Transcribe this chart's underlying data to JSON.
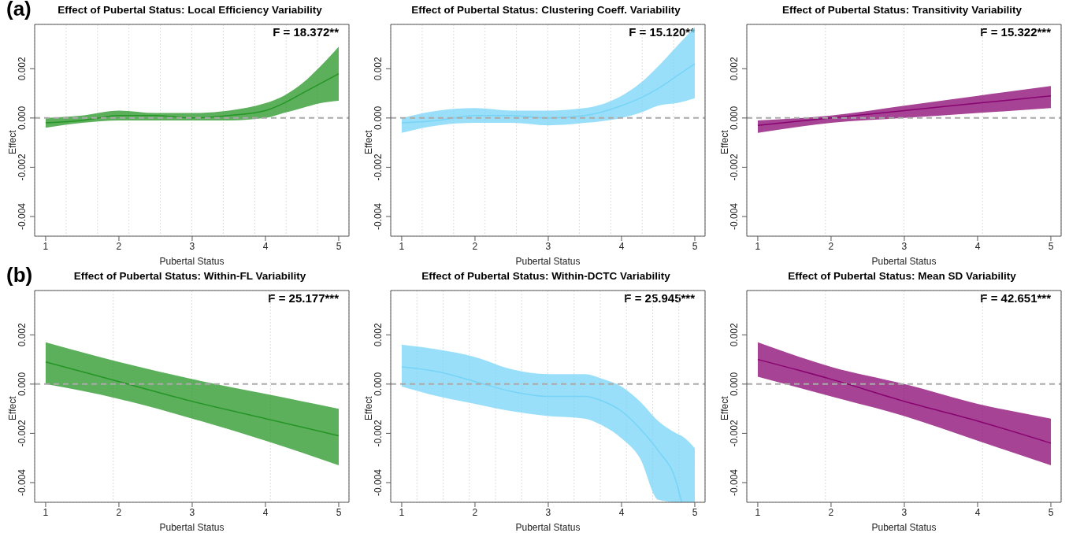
{
  "chart_data": [
    {
      "type": "line",
      "title": "Effect of Pubertal Status: Local Efficiency Variability",
      "xlabel": "Pubertal Status",
      "ylabel": "Effect",
      "annotations": [
        "(a)",
        "F = 18.372**"
      ],
      "x": [
        1,
        1.5,
        2,
        2.5,
        3,
        3.5,
        4,
        4.25,
        4.5,
        4.75,
        5
      ],
      "series": [
        {
          "color": "#259525",
          "values": [
            -0.0002,
            -0.0001,
            0.0001,
            0.0001,
            0,
            0.0001,
            0.0003,
            0.0006,
            0.001,
            0.0014,
            0.0018
          ],
          "lower": [
            -0.0004,
            -0.0002,
            -0.0001,
            -0.0001,
            -0.0001,
            -0.0001,
            0,
            0.0002,
            0.0004,
            0.0006,
            0.0007
          ],
          "upper": [
            0,
            0.0001,
            0.0003,
            0.0002,
            0.0002,
            0.0003,
            0.0006,
            0.0009,
            0.0014,
            0.0021,
            0.0029
          ]
        }
      ],
      "xlim": [
        0.85,
        5.14
      ],
      "ylim": [
        -0.0048,
        0.0038
      ],
      "xticks": [
        1,
        2,
        3,
        4,
        5
      ],
      "yticks": [
        {
          "value": -0.004,
          "label": "-0.004"
        },
        {
          "value": -0.002,
          "label": "-0.002"
        },
        {
          "value": 0,
          "label": "0.000"
        },
        {
          "value": 0.002,
          "label": "0.002"
        }
      ],
      "grid": true,
      "ref_lines": [
        {
          "axis": "y",
          "value": 0,
          "color": "#aaaaaa",
          "line_style": "dashed"
        }
      ]
    },
    {
      "type": "line",
      "title": "Effect of Pubertal Status: Clustering Coeff. Variability",
      "xlabel": "Pubertal Status",
      "ylabel": "Effect",
      "annotations": [
        "F = 15.120**"
      ],
      "x": [
        1,
        1.5,
        2,
        2.5,
        3,
        3.5,
        4,
        4.25,
        4.5,
        4.75,
        5
      ],
      "series": [
        {
          "color": "#77d4f7",
          "values": [
            -0.0002,
            -0.0001,
            0.0001,
            0.0001,
            0,
            0.0001,
            0.0005,
            0.0008,
            0.0012,
            0.0017,
            0.0022
          ],
          "lower": [
            -0.0006,
            -0.0003,
            -0.0002,
            -0.0002,
            -0.0003,
            -0.0002,
            0,
            0.0002,
            0.0005,
            0.0006,
            0.0008
          ],
          "upper": [
            0,
            0.0003,
            0.0004,
            0.0003,
            0.0003,
            0.0004,
            0.0009,
            0.0014,
            0.0021,
            0.0029,
            0.0037
          ]
        }
      ],
      "xlim": [
        0.85,
        5.14
      ],
      "ylim": [
        -0.0048,
        0.0038
      ],
      "xticks": [
        1,
        2,
        3,
        4,
        5
      ],
      "yticks": [
        {
          "value": -0.004,
          "label": "-0.004"
        },
        {
          "value": -0.002,
          "label": "-0.002"
        },
        {
          "value": 0,
          "label": "0.000"
        },
        {
          "value": 0.002,
          "label": "0.002"
        }
      ],
      "grid": true,
      "ref_lines": [
        {
          "axis": "y",
          "value": 0,
          "color": "#aaaaaa",
          "line_style": "dashed"
        }
      ]
    },
    {
      "type": "line",
      "title": "Effect of Pubertal Status: Transitivity Variability",
      "xlabel": "Pubertal Status",
      "ylabel": "Effect",
      "annotations": [
        "F = 15.322***"
      ],
      "x": [
        1,
        2,
        3,
        4,
        5
      ],
      "series": [
        {
          "color": "#880470",
          "values": [
            -0.0003,
            0,
            0.0003,
            0.0006,
            0.0009
          ],
          "lower": [
            -0.0006,
            -0.0002,
            0,
            0.0002,
            0.0004
          ],
          "upper": [
            -0.0001,
            0.0001,
            0.0005,
            0.0009,
            0.0013
          ]
        }
      ],
      "xlim": [
        0.85,
        5.14
      ],
      "ylim": [
        -0.0048,
        0.0038
      ],
      "xticks": [
        1,
        2,
        3,
        4,
        5
      ],
      "yticks": [
        {
          "value": -0.004,
          "label": "-0.004"
        },
        {
          "value": -0.002,
          "label": "-0.002"
        },
        {
          "value": 0,
          "label": "0.000"
        },
        {
          "value": 0.002,
          "label": "0.002"
        }
      ],
      "grid": true,
      "ref_lines": [
        {
          "axis": "y",
          "value": 0,
          "color": "#aaaaaa",
          "line_style": "dashed"
        }
      ]
    },
    {
      "type": "line",
      "title": "Effect of Pubertal Status: Within-FL Variability",
      "xlabel": "Pubertal Status",
      "ylabel": "Effect",
      "annotations": [
        "(b)",
        "F = 25.177***"
      ],
      "x": [
        1,
        2,
        3,
        4,
        5
      ],
      "series": [
        {
          "color": "#259525",
          "values": [
            0.0009,
            0.0001,
            -0.0007,
            -0.0014,
            -0.0021
          ],
          "lower": [
            0,
            -0.0006,
            -0.0014,
            -0.0023,
            -0.0033
          ],
          "upper": [
            0.0017,
            0.0009,
            0.0002,
            -0.0004,
            -0.001
          ]
        }
      ],
      "xlim": [
        0.85,
        5.14
      ],
      "ylim": [
        -0.0048,
        0.0038
      ],
      "xticks": [
        1,
        2,
        3,
        4,
        5
      ],
      "yticks": [
        {
          "value": -0.004,
          "label": "-0.004"
        },
        {
          "value": -0.002,
          "label": "-0.002"
        },
        {
          "value": 0,
          "label": "0.000"
        },
        {
          "value": 0.002,
          "label": "0.002"
        }
      ],
      "grid": true,
      "ref_lines": [
        {
          "axis": "y",
          "value": 0,
          "color": "#aaaaaa",
          "line_style": "dashed"
        }
      ]
    },
    {
      "type": "line",
      "title": "Effect of Pubertal Status: Within-DCTC Variability",
      "xlabel": "Pubertal Status",
      "ylabel": "Effect",
      "annotations": [
        "F = 25.945***"
      ],
      "x": [
        1,
        1.5,
        2,
        2.5,
        3,
        3.5,
        3.75,
        4,
        4.25,
        4.5,
        4.75,
        4.82,
        5
      ],
      "series": [
        {
          "color": "#77d4f7",
          "values": [
            0.0007,
            0.0005,
            0.0001,
            -0.0003,
            -0.0005,
            -0.0005,
            -0.0007,
            -0.0011,
            -0.0018,
            -0.0027,
            -0.004,
            -0.0048,
            null
          ],
          "lower": [
            -0.0001,
            -0.0005,
            -0.0008,
            -0.0011,
            -0.0013,
            -0.0014,
            -0.0017,
            -0.0022,
            -0.003,
            -0.0047,
            -0.0048,
            -0.0048,
            -0.0048
          ],
          "upper": [
            0.0016,
            0.0014,
            0.0011,
            0.0006,
            0.0004,
            0.0004,
            0.0002,
            -0.0001,
            -0.0007,
            -0.0015,
            -0.002,
            -0.0021,
            -0.0026
          ]
        }
      ],
      "xlim": [
        0.85,
        5.14
      ],
      "ylim": [
        -0.0048,
        0.0038
      ],
      "xticks": [
        1,
        2,
        3,
        4,
        5
      ],
      "yticks": [
        {
          "value": -0.004,
          "label": "-0.004"
        },
        {
          "value": -0.002,
          "label": "-0.002"
        },
        {
          "value": 0,
          "label": "0.000"
        },
        {
          "value": 0.002,
          "label": "0.002"
        }
      ],
      "grid": true,
      "ref_lines": [
        {
          "axis": "y",
          "value": 0,
          "color": "#aaaaaa",
          "line_style": "dashed"
        }
      ]
    },
    {
      "type": "line",
      "title": "Effect of Pubertal Status: Mean SD Variability",
      "xlabel": "Pubertal Status",
      "ylabel": "Effect",
      "annotations": [
        "F = 42.651***"
      ],
      "x": [
        1,
        2,
        3,
        4,
        5
      ],
      "series": [
        {
          "color": "#880470",
          "values": [
            0.001,
            0.0002,
            -0.0007,
            -0.0015,
            -0.0024
          ],
          "lower": [
            0.0003,
            -0.0005,
            -0.0013,
            -0.0023,
            -0.0033
          ],
          "upper": [
            0.0017,
            0.0007,
            0,
            -0.0008,
            -0.0014
          ]
        }
      ],
      "xlim": [
        0.85,
        5.14
      ],
      "ylim": [
        -0.0048,
        0.0038
      ],
      "xticks": [
        1,
        2,
        3,
        4,
        5
      ],
      "yticks": [
        {
          "value": -0.004,
          "label": "-0.004"
        },
        {
          "value": -0.002,
          "label": "-0.002"
        },
        {
          "value": 0,
          "label": "0.000"
        },
        {
          "value": 0.002,
          "label": "0.002"
        }
      ],
      "grid": true,
      "ref_lines": [
        {
          "axis": "y",
          "value": 0,
          "color": "#aaaaaa",
          "line_style": "dashed"
        }
      ]
    }
  ]
}
